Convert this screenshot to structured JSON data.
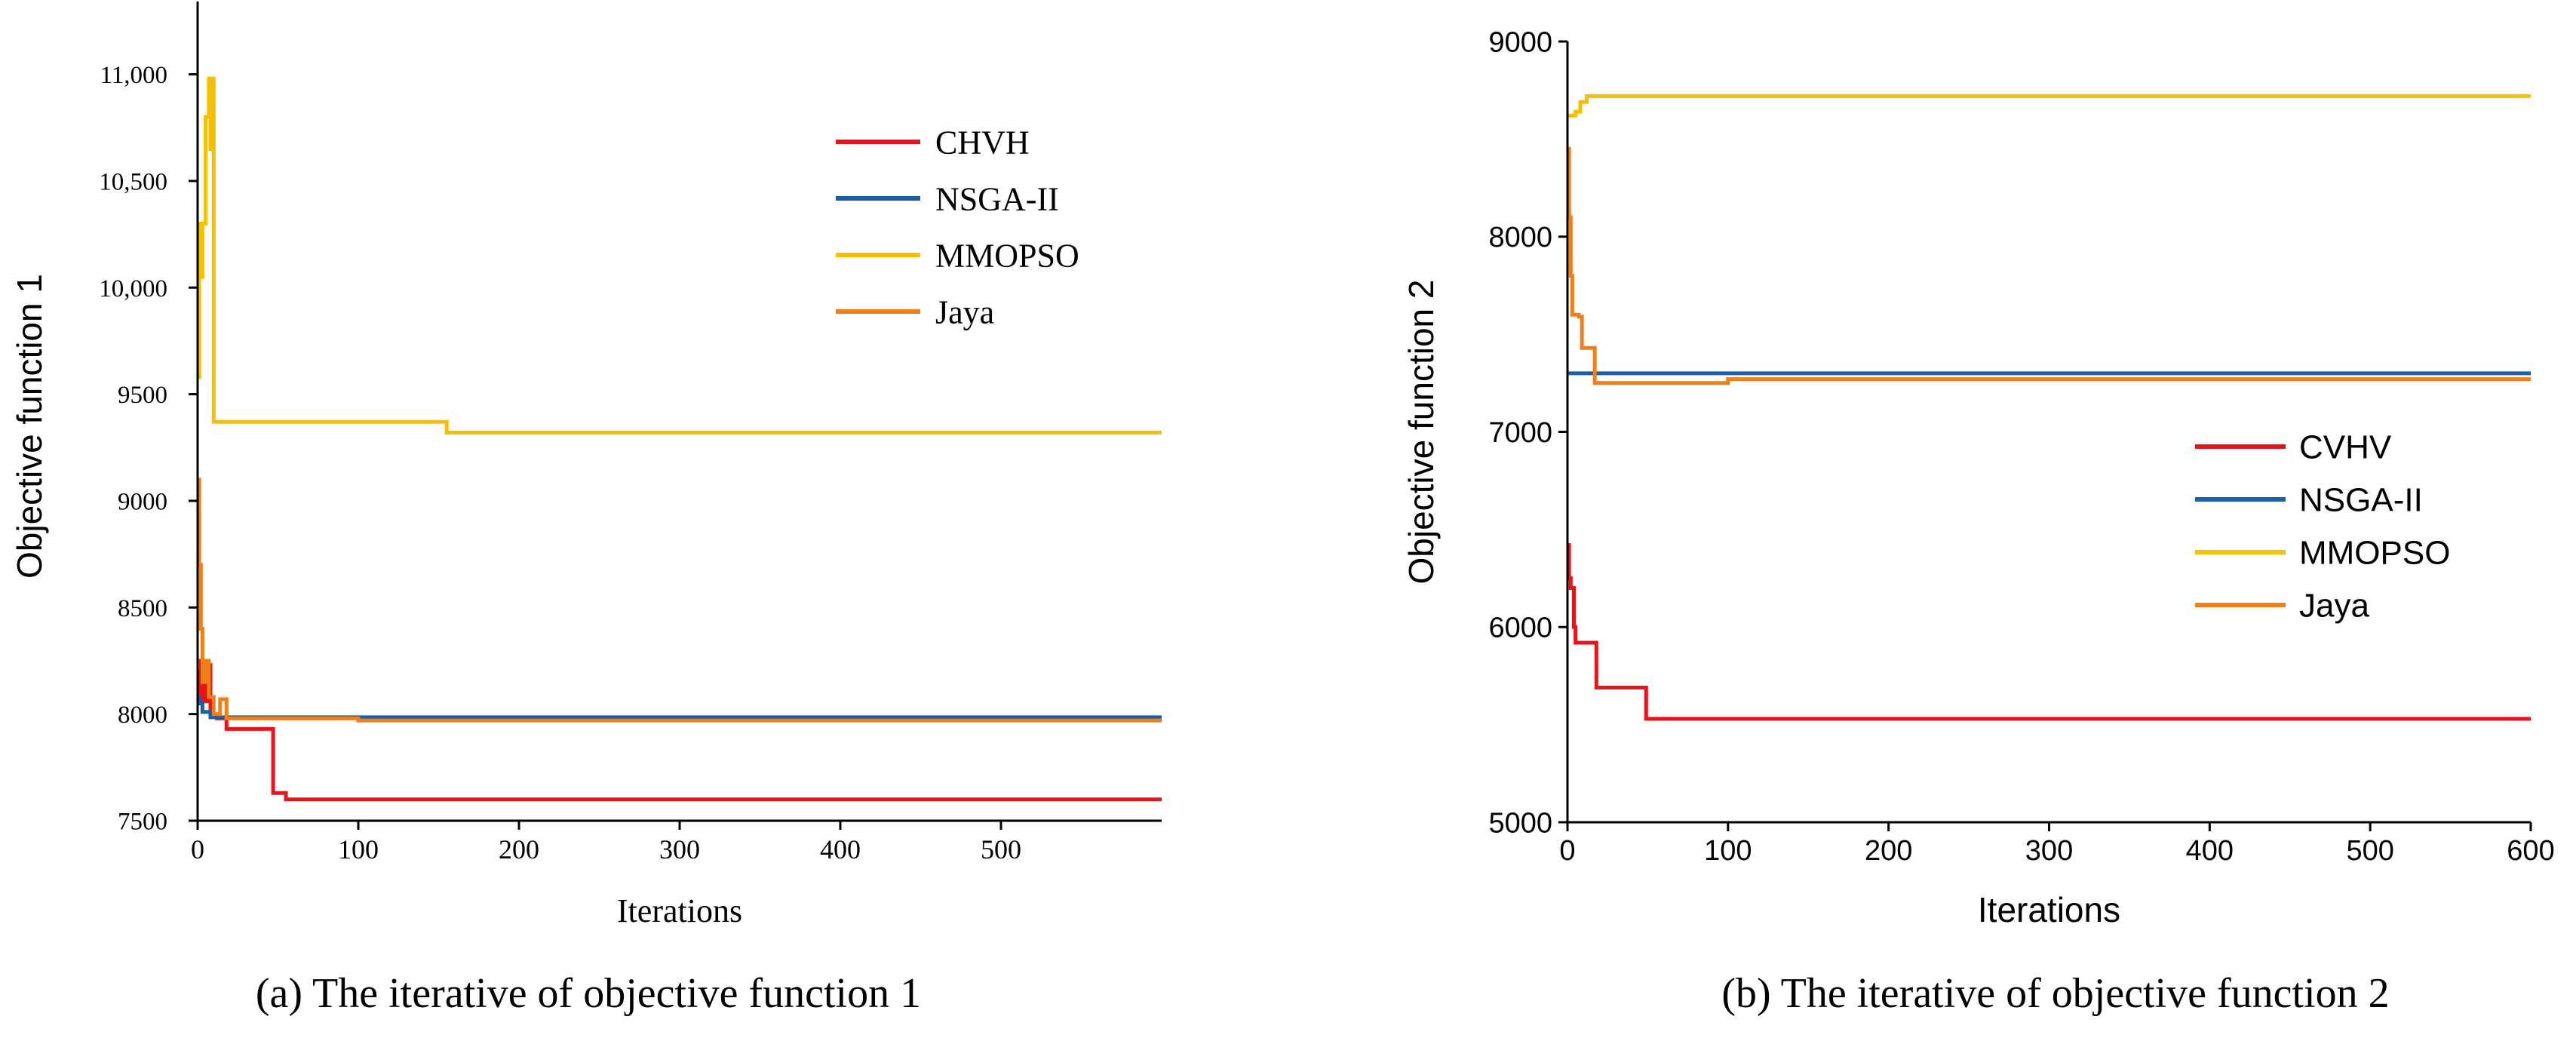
{
  "chart_data": [
    {
      "type": "line",
      "title": "",
      "caption": "(a) The iterative of objective function 1",
      "xlabel": "Iterations",
      "ylabel": "Objective function 1",
      "xlim": [
        0,
        600
      ],
      "ylim": [
        7500,
        11200
      ],
      "xticks": [
        0,
        100,
        200,
        300,
        400,
        500
      ],
      "xtick_labels": [
        "0",
        "100",
        "200",
        "300",
        "400",
        "500"
      ],
      "yticks": [
        7500,
        8000,
        8500,
        9000,
        9500,
        10000,
        10500,
        11000
      ],
      "ytick_labels": [
        "7500",
        "8000",
        "8500",
        "9000",
        "9500",
        "10,000",
        "10,500",
        "11,000"
      ],
      "legend_position": "top-right",
      "series": [
        {
          "name": "CHVH",
          "color": "#e8141b",
          "x": [
            0,
            1,
            1,
            2,
            2,
            3,
            3,
            4,
            4,
            6,
            6,
            8,
            8,
            12,
            12,
            18,
            18,
            47,
            47,
            55,
            55,
            600
          ],
          "y": [
            8200,
            8200,
            8050,
            8050,
            8250,
            8250,
            8150,
            8150,
            8060,
            8060,
            8230,
            8230,
            7990,
            7990,
            7980,
            7980,
            7930,
            7930,
            7630,
            7630,
            7600,
            7600
          ]
        },
        {
          "name": "NSGA-II",
          "color": "#1b5fa6",
          "x": [
            0,
            1,
            1,
            3,
            3,
            8,
            8,
            600
          ],
          "y": [
            8080,
            8080,
            8050,
            8050,
            8010,
            8010,
            7985,
            7985
          ]
        },
        {
          "name": "MMOPSO",
          "color": "#f5c000",
          "x": [
            0,
            1,
            1,
            2,
            2,
            3,
            3,
            5,
            5,
            7,
            7,
            8,
            8,
            9,
            9,
            10,
            10,
            155,
            155,
            600
          ],
          "y": [
            9580,
            9580,
            10300,
            10300,
            10050,
            10050,
            10300,
            10300,
            10800,
            10800,
            10980,
            10980,
            10650,
            10650,
            10980,
            10980,
            9370,
            9370,
            9320,
            9320
          ]
        },
        {
          "name": "Jaya",
          "color": "#f07f1a",
          "x": [
            0,
            1,
            1,
            2,
            2,
            3,
            3,
            5,
            5,
            7,
            7,
            10,
            10,
            14,
            14,
            18,
            18,
            100,
            100,
            600
          ],
          "y": [
            9100,
            9100,
            8700,
            8700,
            8400,
            8400,
            8150,
            8150,
            8250,
            8250,
            8080,
            8080,
            8000,
            8000,
            8070,
            8070,
            7980,
            7980,
            7970,
            7970
          ]
        }
      ]
    },
    {
      "type": "line",
      "title": "",
      "caption": "(b) The iterative of objective function 2",
      "xlabel": "Iterations",
      "ylabel": "Objective function 2",
      "xlim": [
        0,
        600
      ],
      "ylim": [
        5000,
        9000
      ],
      "xticks": [
        0,
        100,
        200,
        300,
        400,
        500,
        600
      ],
      "xtick_labels": [
        "0",
        "100",
        "200",
        "300",
        "400",
        "500",
        "600"
      ],
      "yticks": [
        5000,
        6000,
        7000,
        8000,
        9000
      ],
      "ytick_labels": [
        "5000",
        "6000",
        "7000",
        "8000",
        "9000"
      ],
      "legend_position": "center-right",
      "series": [
        {
          "name": "CVHV",
          "color": "#e8141b",
          "x": [
            0,
            1,
            1,
            2,
            2,
            4,
            4,
            5,
            5,
            18,
            18,
            49,
            49,
            600
          ],
          "y": [
            6420,
            6420,
            6250,
            6250,
            6200,
            6200,
            6000,
            6000,
            5920,
            5920,
            5690,
            5690,
            5530,
            5530
          ]
        },
        {
          "name": "NSGA-II",
          "color": "#1b5fa6",
          "x": [
            0,
            600
          ],
          "y": [
            7300,
            7300
          ]
        },
        {
          "name": "MMOPSO",
          "color": "#f5c000",
          "x": [
            0,
            5,
            5,
            8,
            8,
            12,
            12,
            600
          ],
          "y": [
            8620,
            8620,
            8640,
            8640,
            8690,
            8690,
            8720,
            8720
          ]
        },
        {
          "name": "Jaya",
          "color": "#f07f1a",
          "x": [
            0,
            1,
            1,
            2,
            2,
            3,
            3,
            7,
            7,
            9,
            9,
            15,
            15,
            17,
            17,
            100,
            100,
            600
          ],
          "y": [
            8450,
            8450,
            8100,
            8100,
            7800,
            7800,
            7600,
            7600,
            7590,
            7590,
            7430,
            7430,
            7430,
            7430,
            7250,
            7250,
            7270,
            7270
          ]
        }
      ]
    }
  ]
}
